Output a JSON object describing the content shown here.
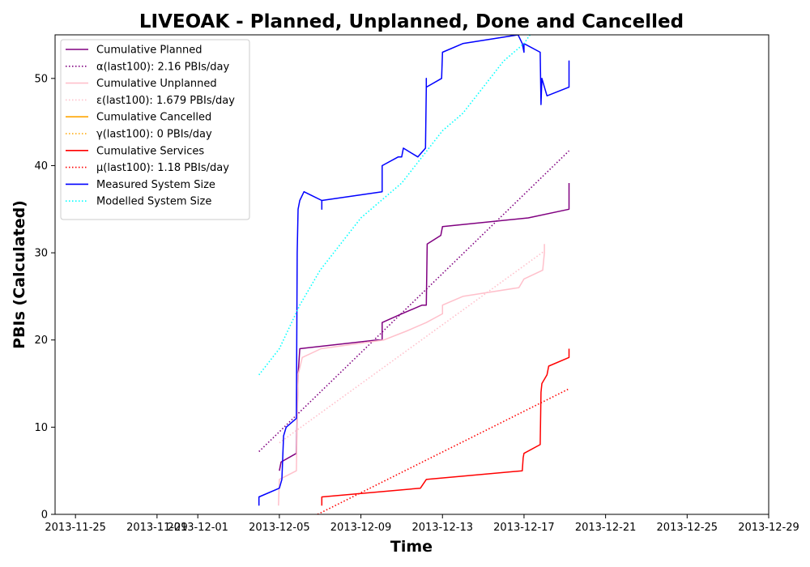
{
  "chart_data": {
    "type": "line",
    "title": "LIVEOAK - Planned, Unplanned, Done  and Cancelled",
    "xlabel": "Time",
    "ylabel": "PBIs (Calculated)",
    "x_axis": {
      "type": "date",
      "range": [
        "2013-11-24",
        "2013-12-29"
      ],
      "ticks": [
        "2013-11-25",
        "2013-11-29",
        "2013-12-01",
        "2013-12-05",
        "2013-12-09",
        "2013-12-13",
        "2013-12-17",
        "2013-12-21",
        "2013-12-25",
        "2013-12-29"
      ],
      "tick_labels": [
        "2013-11-25",
        "2013-11-29",
        "2013-12-01",
        "2013-12-05",
        "2013-12-09",
        "2013-12-13",
        "2013-12-17",
        "2013-12-21",
        "2013-12-25",
        "2013-12-29"
      ]
    },
    "y_axis": {
      "range": [
        0,
        55
      ],
      "ticks": [
        0,
        10,
        20,
        30,
        40,
        50
      ]
    },
    "grid": false,
    "legend_position": "top-left",
    "series": [
      {
        "name": "Cumulative Planned",
        "color": "#800080",
        "style": "solid",
        "points": [
          [
            "2013-12-05 00:00",
            5
          ],
          [
            "2013-12-05 02:00",
            6
          ],
          [
            "2013-12-05 20:00",
            7
          ],
          [
            "2013-12-05 22:00",
            16
          ],
          [
            "2013-12-06 00:00",
            19
          ],
          [
            "2013-12-09 19:00",
            20
          ],
          [
            "2013-12-10 01:00",
            20
          ],
          [
            "2013-12-10 01:00",
            22
          ],
          [
            "2013-12-11 00:00",
            23
          ],
          [
            "2013-12-12 00:00",
            24
          ],
          [
            "2013-12-12 05:00",
            24
          ],
          [
            "2013-12-12 06:00",
            31
          ],
          [
            "2013-12-12 22:00",
            32
          ],
          [
            "2013-12-13 00:00",
            33
          ],
          [
            "2013-12-17 05:00",
            34
          ],
          [
            "2013-12-19 05:00",
            35
          ],
          [
            "2013-12-19 05:00",
            38
          ]
        ]
      },
      {
        "name": "α(last100): 2.16 PBIs/day",
        "color": "#800080",
        "style": "dotted",
        "points": [
          [
            "2013-12-04 00:00",
            7.2
          ],
          [
            "2013-12-19 05:00",
            41.7
          ]
        ]
      },
      {
        "name": "Cumulative Unplanned",
        "color": "#ffc0cb",
        "style": "solid",
        "points": [
          [
            "2013-12-04 23:00",
            1
          ],
          [
            "2013-12-05 00:00",
            4
          ],
          [
            "2013-12-05 20:00",
            5
          ],
          [
            "2013-12-05 22:00",
            16
          ],
          [
            "2013-12-06 03:00",
            18
          ],
          [
            "2013-12-07 01:00",
            19
          ],
          [
            "2013-12-10 03:00",
            20
          ],
          [
            "2013-12-11 05:00",
            21
          ],
          [
            "2013-12-12 05:00",
            22
          ],
          [
            "2013-12-13 00:00",
            23
          ],
          [
            "2013-12-13 00:00",
            24
          ],
          [
            "2013-12-14 00:00",
            25
          ],
          [
            "2013-12-16 18:00",
            26
          ],
          [
            "2013-12-17 00:00",
            27
          ],
          [
            "2013-12-17 22:00",
            28
          ],
          [
            "2013-12-18 00:00",
            30
          ],
          [
            "2013-12-18 00:00",
            31
          ]
        ]
      },
      {
        "name": "ε(last100): 1.679 PBIs/day",
        "color": "#ffc0cb",
        "style": "dotted",
        "points": [
          [
            "2013-12-05 00:00",
            8.2
          ],
          [
            "2013-12-18 00:00",
            30.2
          ]
        ]
      },
      {
        "name": "Cumulative Cancelled",
        "color": "#ffa500",
        "style": "solid",
        "points": []
      },
      {
        "name": "γ(last100): 0 PBIs/day",
        "color": "#ffa500",
        "style": "dotted",
        "points": []
      },
      {
        "name": "Cumulative Services",
        "color": "#ff0000",
        "style": "solid",
        "points": [
          [
            "2013-12-07 02:00",
            1
          ],
          [
            "2013-12-07 02:00",
            2
          ],
          [
            "2013-12-11 22:00",
            3
          ],
          [
            "2013-12-12 05:00",
            4
          ],
          [
            "2013-12-16 22:00",
            5
          ],
          [
            "2013-12-16 23:00",
            6.5
          ],
          [
            "2013-12-17 00:00",
            7
          ],
          [
            "2013-12-17 19:00",
            8
          ],
          [
            "2013-12-17 20:00",
            14
          ],
          [
            "2013-12-17 21:00",
            15
          ],
          [
            "2013-12-18 03:00",
            16
          ],
          [
            "2013-12-18 05:00",
            17
          ],
          [
            "2013-12-19 05:00",
            18
          ],
          [
            "2013-12-19 05:00",
            19
          ]
        ]
      },
      {
        "name": "μ(last100): 1.18 PBIs/day",
        "color": "#ff0000",
        "style": "dotted",
        "points": [
          [
            "2013-12-06 21:00",
            0
          ],
          [
            "2013-12-19 05:00",
            14.4
          ]
        ]
      },
      {
        "name": "Measured System Size",
        "color": "#0000ff",
        "style": "solid",
        "points": [
          [
            "2013-12-04 00:00",
            1
          ],
          [
            "2013-12-04 00:00",
            2
          ],
          [
            "2013-12-05 00:00",
            3
          ],
          [
            "2013-12-05 03:00",
            4
          ],
          [
            "2013-12-05 05:00",
            9
          ],
          [
            "2013-12-05 08:00",
            10
          ],
          [
            "2013-12-05 20:00",
            11
          ],
          [
            "2013-12-05 21:00",
            30
          ],
          [
            "2013-12-05 22:00",
            35
          ],
          [
            "2013-12-06 00:00",
            36
          ],
          [
            "2013-12-06 05:00",
            37
          ],
          [
            "2013-12-07 02:00",
            36
          ],
          [
            "2013-12-07 02:00",
            35
          ],
          [
            "2013-12-07 02:00",
            36
          ],
          [
            "2013-12-10 01:00",
            37
          ],
          [
            "2013-12-10 01:00",
            40
          ],
          [
            "2013-12-10 20:00",
            41
          ],
          [
            "2013-12-11 00:00",
            41
          ],
          [
            "2013-12-11 02:00",
            42
          ],
          [
            "2013-12-11 19:00",
            41
          ],
          [
            "2013-12-12 04:00",
            42
          ],
          [
            "2013-12-12 05:00",
            49
          ],
          [
            "2013-12-12 05:00",
            50
          ],
          [
            "2013-12-12 05:00",
            49
          ],
          [
            "2013-12-12 23:00",
            50
          ],
          [
            "2013-12-13 00:00",
            53
          ],
          [
            "2013-12-14 00:00",
            54
          ],
          [
            "2013-12-16 17:00",
            55
          ],
          [
            "2013-12-16 22:00",
            54
          ],
          [
            "2013-12-17 00:00",
            53
          ],
          [
            "2013-12-17 00:00",
            54
          ],
          [
            "2013-12-17 19:00",
            53
          ],
          [
            "2013-12-17 20:00",
            47
          ],
          [
            "2013-12-17 21:00",
            50
          ],
          [
            "2013-12-18 03:00",
            48
          ],
          [
            "2013-12-19 05:00",
            49
          ],
          [
            "2013-12-19 05:00",
            52
          ],
          [
            "2013-12-19 05:00",
            50
          ]
        ]
      },
      {
        "name": "Modelled System Size",
        "color": "#00ffff",
        "style": "dotted",
        "points": [
          [
            "2013-12-04 00:00",
            16
          ],
          [
            "2013-12-05 00:00",
            19
          ],
          [
            "2013-12-06 00:00",
            24
          ],
          [
            "2013-12-07 00:00",
            28
          ],
          [
            "2013-12-08 00:00",
            31
          ],
          [
            "2013-12-09 00:00",
            34
          ],
          [
            "2013-12-10 00:00",
            36
          ],
          [
            "2013-12-11 00:00",
            38
          ],
          [
            "2013-12-12 00:00",
            41
          ],
          [
            "2013-12-13 00:00",
            44
          ],
          [
            "2013-12-14 00:00",
            46
          ],
          [
            "2013-12-15 00:00",
            49
          ],
          [
            "2013-12-16 00:00",
            52
          ],
          [
            "2013-12-17 00:00",
            54
          ],
          [
            "2013-12-17 07:00",
            55
          ]
        ]
      }
    ]
  }
}
